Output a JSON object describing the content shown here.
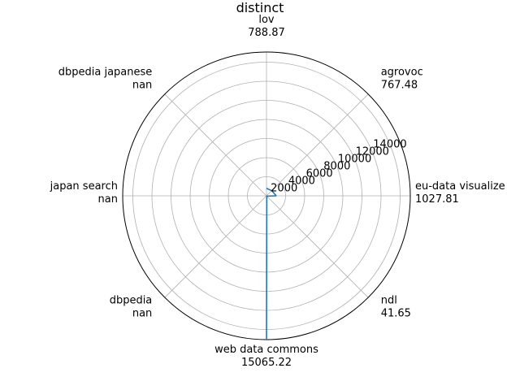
{
  "chart_data": {
    "type": "radar",
    "title": "distinct",
    "categories": [
      {
        "name": "eu-data visualize",
        "value_label": "1027.81"
      },
      {
        "name": "agrovoc",
        "value_label": "767.48"
      },
      {
        "name": "lov",
        "value_label": "788.87"
      },
      {
        "name": "dbpedia japanese",
        "value_label": "nan"
      },
      {
        "name": "japan search",
        "value_label": "nan"
      },
      {
        "name": "dbpedia",
        "value_label": "nan"
      },
      {
        "name": "web data commons",
        "value_label": "15065.22"
      },
      {
        "name": "ndl",
        "value_label": "41.65"
      }
    ],
    "values": [
      1027.81,
      767.48,
      788.87,
      null,
      null,
      null,
      15065.22,
      41.65
    ],
    "radial_ticks": [
      2000,
      4000,
      6000,
      8000,
      10000,
      12000,
      14000
    ],
    "rlim": [
      0,
      15065.22
    ],
    "grid": true,
    "series_color": "#1f77b4"
  }
}
